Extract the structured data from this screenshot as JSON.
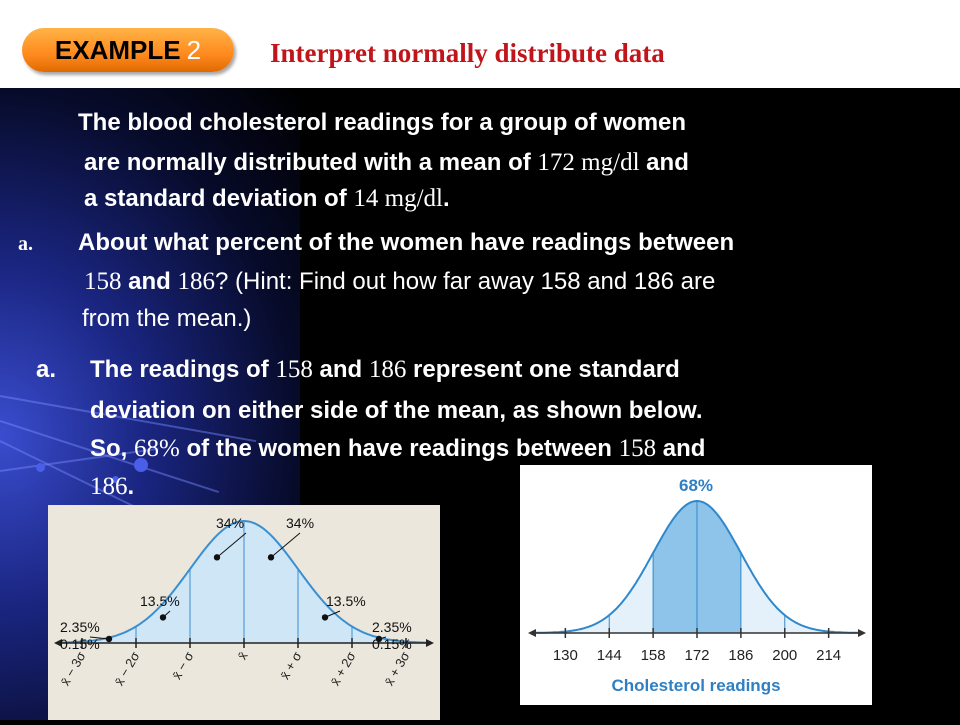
{
  "header": {
    "badge_word": "EXAMPLE",
    "badge_number": "2",
    "title": "Interpret normally distribute data"
  },
  "problem": {
    "l1": "The blood cholesterol readings for a group of women",
    "l2a": "are normally distributed with a mean of ",
    "mean": "172 mg/dl",
    "l2b": " and",
    "l3a": "a standard deviation of ",
    "sd": "14 mg/dl",
    "l3b": "."
  },
  "question": {
    "label": "a.",
    "l1": "About what percent of the women have readings between",
    "v1": "158",
    "and": " and ",
    "v2": "186",
    "l2rest": "?  (Hint:  Find out how far away 158 and 186 are",
    "l3": "from the mean.)"
  },
  "answer": {
    "label": "a.",
    "l1a": "The readings of ",
    "v1": "158",
    "and": " and ",
    "v2": "186",
    "l1b": " represent one standard",
    "l2": "deviation on either side of the mean, as shown below.",
    "l3a": "So, ",
    "pct": "68%",
    "l3b": " of the women have readings between ",
    "v3": "158",
    "l3c": " and",
    "v4": "186",
    "l4b": "."
  },
  "colors": {
    "accent_red": "#c0161b",
    "badge_orange": "#ff8a1e",
    "curve_blue": "#3a8fd0",
    "fill_blue": "#cfe6f7",
    "fill_blue_dark": "#8ec4ea"
  },
  "chart_data": [
    {
      "type": "area",
      "title": "",
      "regions": [
        "-3σ to -2σ",
        "-2σ to -σ",
        "-σ to mean",
        "mean to +σ",
        "+σ to +2σ",
        "+2σ to +3σ",
        "beyond ±3σ"
      ],
      "labels": [
        "34%",
        "34%",
        "13.5%",
        "13.5%",
        "2.35%",
        "2.35%",
        "0.15%",
        "0.15%"
      ],
      "tick_labels": [
        "x̄ − 3σ",
        "x̄ − 2σ",
        "x̄ − σ",
        "x̄",
        "x̄ + σ",
        "x̄ + 2σ",
        "x̄ + 3σ"
      ],
      "percent_values": [
        0.15,
        2.35,
        13.5,
        34,
        34,
        13.5,
        2.35,
        0.15
      ]
    },
    {
      "type": "area",
      "title": "68%",
      "xlabel": "Cholesterol readings",
      "x_ticks": [
        130,
        144,
        158,
        172,
        186,
        200,
        214
      ],
      "shaded_range": [
        158,
        186
      ],
      "shaded_percent": 68,
      "mean": 172,
      "sd": 14
    }
  ]
}
